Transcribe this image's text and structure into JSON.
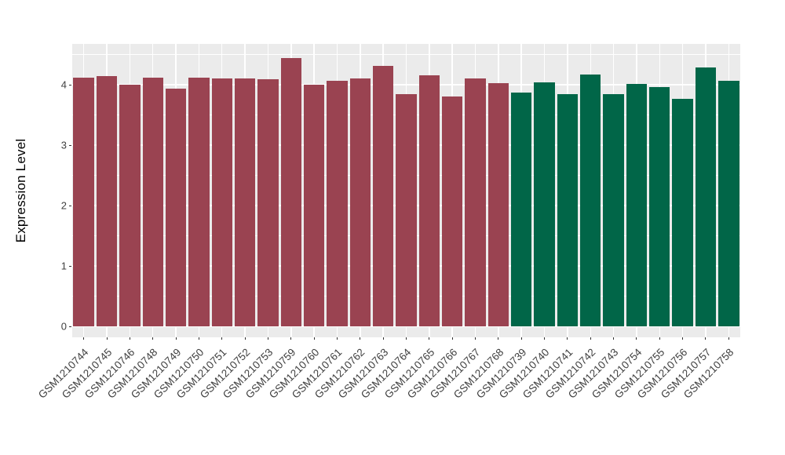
{
  "chart_data": {
    "type": "bar",
    "title": "",
    "xlabel": "",
    "ylabel": "Expression Level",
    "ylim": [
      0,
      4.66
    ],
    "yticks": [
      0,
      1,
      2,
      3,
      4
    ],
    "yminorticks": [
      0.5,
      1.5,
      2.5,
      3.5,
      4.5
    ],
    "grid": "on",
    "legend": "none",
    "panel_background": "#EBEBEB",
    "gridline_color": "#FFFFFF",
    "axis_text_color": "#404040",
    "categories": [
      "GSM1210744",
      "GSM1210745",
      "GSM1210746",
      "GSM1210748",
      "GSM1210749",
      "GSM1210750",
      "GSM1210751",
      "GSM1210752",
      "GSM1210753",
      "GSM1210759",
      "GSM1210760",
      "GSM1210761",
      "GSM1210762",
      "GSM1210763",
      "GSM1210764",
      "GSM1210765",
      "GSM1210766",
      "GSM1210767",
      "GSM1210768",
      "GSM1210739",
      "GSM1210740",
      "GSM1210741",
      "GSM1210742",
      "GSM1210743",
      "GSM1210754",
      "GSM1210755",
      "GSM1210756",
      "GSM1210757",
      "GSM1210758"
    ],
    "values": [
      4.12,
      4.14,
      4.0,
      4.12,
      3.93,
      4.12,
      4.11,
      4.11,
      4.09,
      4.44,
      4.0,
      4.06,
      4.11,
      4.31,
      3.84,
      4.16,
      3.8,
      4.1,
      4.03,
      3.87,
      4.04,
      3.85,
      4.17,
      3.85,
      4.01,
      3.96,
      3.77,
      4.28,
      4.07
    ],
    "groups": [
      "group1",
      "group1",
      "group1",
      "group1",
      "group1",
      "group1",
      "group1",
      "group1",
      "group1",
      "group1",
      "group1",
      "group1",
      "group1",
      "group1",
      "group1",
      "group1",
      "group1",
      "group1",
      "group1",
      "group2",
      "group2",
      "group2",
      "group2",
      "group2",
      "group2",
      "group2",
      "group2",
      "group2",
      "group2"
    ],
    "group_colors": {
      "group1": "#9A4351",
      "group2": "#016648"
    }
  }
}
